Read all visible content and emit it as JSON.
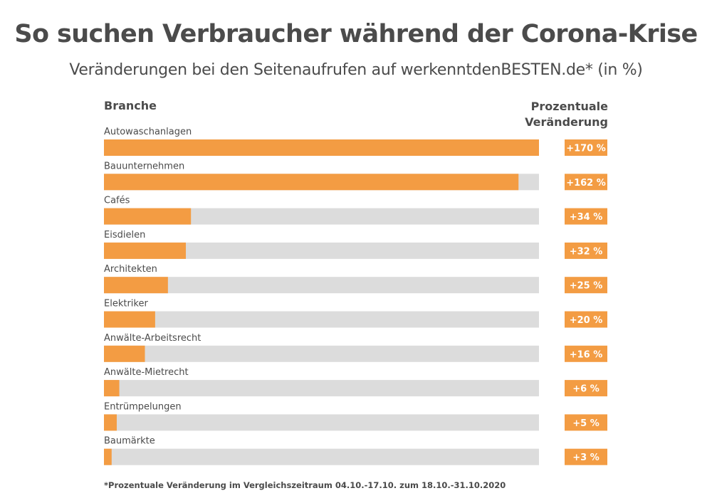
{
  "title": "So suchen Verbraucher während der Corona-Krise",
  "subtitle": "Veränderungen bei den Seitenaufrufen auf werkenntdenBESTEN.de* (in %)",
  "column_left": "Branche",
  "column_right_line1": "Prozentuale",
  "column_right_line2": "Veränderung",
  "footnote": "*Prozentuale Veränderung im Vergleichszeitraum 04.10.-17.10. zum 18.10.-31.10.2020",
  "colors": {
    "bar": "#f39c43",
    "track": "#dcdcdc",
    "badge": "#f39c43"
  },
  "chart_data": {
    "type": "bar",
    "orientation": "horizontal",
    "xlim": [
      0,
      170
    ],
    "categories": [
      "Autowaschanlagen",
      "Bauunternehmen",
      "Cafés",
      "Eisdielen",
      "Architekten",
      "Elektriker",
      "Anwälte-Arbeitsrecht",
      "Anwälte-Mietrecht",
      "Entrümpelungen",
      "Baumärkte"
    ],
    "values": [
      170,
      162,
      34,
      32,
      25,
      20,
      16,
      6,
      5,
      3
    ],
    "value_labels": [
      "+170 %",
      "+162 %",
      "+34 %",
      "+32 %",
      "+25 %",
      "+20 %",
      "+16 %",
      "+6 %",
      "+5 %",
      "+3 %"
    ]
  }
}
